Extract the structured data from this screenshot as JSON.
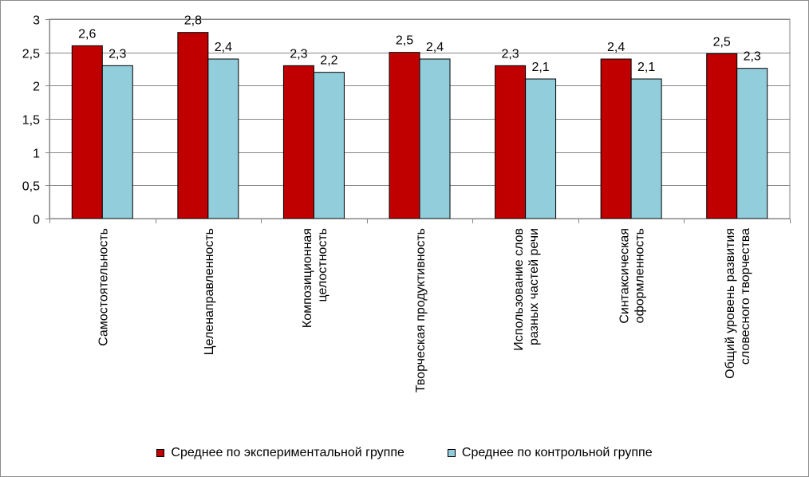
{
  "chart_data": {
    "type": "bar",
    "title": "",
    "xlabel": "",
    "ylabel": "",
    "ylim": [
      0,
      3
    ],
    "yticks": [
      "0",
      "0,5",
      "1",
      "1,5",
      "2",
      "2,5",
      "3"
    ],
    "ytick_values": [
      0,
      0.5,
      1,
      1.5,
      2,
      2.5,
      3
    ],
    "grid": true,
    "legend_position": "bottom",
    "categories": [
      [
        "Самостоятельность"
      ],
      [
        "Целенаправленность"
      ],
      [
        "Композиционная",
        "целостность"
      ],
      [
        "Творческая продуктивность"
      ],
      [
        "Использование слов",
        "разных частей речи"
      ],
      [
        "Синтаксическая",
        "оформленность"
      ],
      [
        "Общий уровень развития",
        "словесного творчества"
      ]
    ],
    "series": [
      {
        "name": "Среднее по экспериментальной группе",
        "color": "#c00000",
        "values": [
          2.6,
          2.8,
          2.3,
          2.5,
          2.3,
          2.4,
          2.48
        ],
        "labels": [
          "2,6",
          "2,8",
          "2,3",
          "2,5",
          "2,3",
          "2,4",
          "2,5"
        ]
      },
      {
        "name": "Среднее по контрольной группе",
        "color": "#92cddc",
        "values": [
          2.3,
          2.4,
          2.2,
          2.4,
          2.1,
          2.1,
          2.26
        ],
        "labels": [
          "2,3",
          "2,4",
          "2,2",
          "2,4",
          "2,1",
          "2,1",
          "2,3"
        ]
      }
    ]
  }
}
